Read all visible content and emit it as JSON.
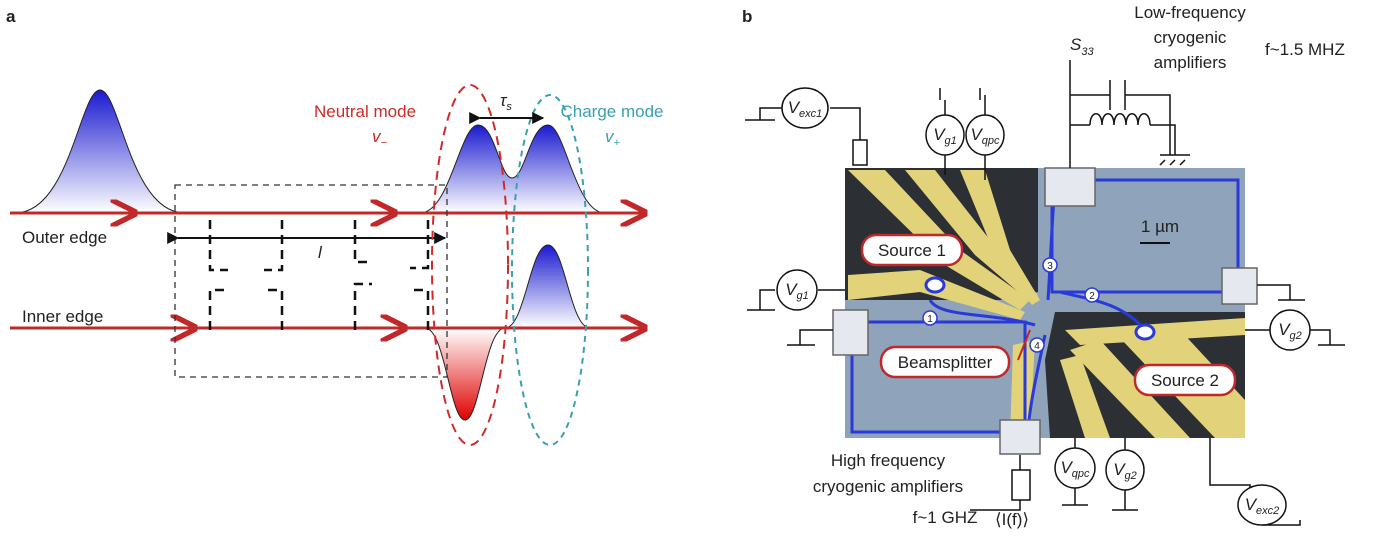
{
  "panel_a": {
    "label": "a",
    "neutral_mode": {
      "name": "Neutral mode",
      "velocity": {
        "symbol": "v",
        "subscript": "−"
      }
    },
    "charge_mode": {
      "name": "Charge mode",
      "velocity": {
        "symbol": "v",
        "subscript": "+"
      }
    },
    "delay": {
      "symbol": "τ",
      "subscript": "s"
    },
    "length": "l",
    "outer_edge": "Outer edge",
    "inner_edge": "Inner edge"
  },
  "panel_b": {
    "label": "b",
    "low_freq_amplifiers": [
      "Low-frequency",
      "cryogenic",
      "amplifiers"
    ],
    "low_freq": "f~1.5 MHZ",
    "noise": {
      "symbol": "S",
      "subscript": "33"
    },
    "high_freq_amplifiers": [
      "High frequency",
      "cryogenic amplifiers"
    ],
    "high_freq": "f~1 GHZ",
    "current": "⟨I(f)⟩",
    "scale_bar": "1 µm",
    "source_1": "Source 1",
    "source_2": "Source 2",
    "beamsplitter": "Beamsplitter",
    "voltages": [
      {
        "symbol": "V",
        "subscript": "exc1"
      },
      {
        "symbol": "V",
        "subscript": "g1"
      },
      {
        "symbol": "V",
        "subscript": "qpc"
      },
      {
        "symbol": "V",
        "subscript": "g1"
      },
      {
        "symbol": "V",
        "subscript": "g2"
      },
      {
        "symbol": "V",
        "subscript": "qpc"
      },
      {
        "symbol": "V",
        "subscript": "g2"
      },
      {
        "symbol": "V",
        "subscript": "exc2"
      }
    ],
    "path_labels": [
      "1",
      "2",
      "3",
      "4"
    ]
  }
}
